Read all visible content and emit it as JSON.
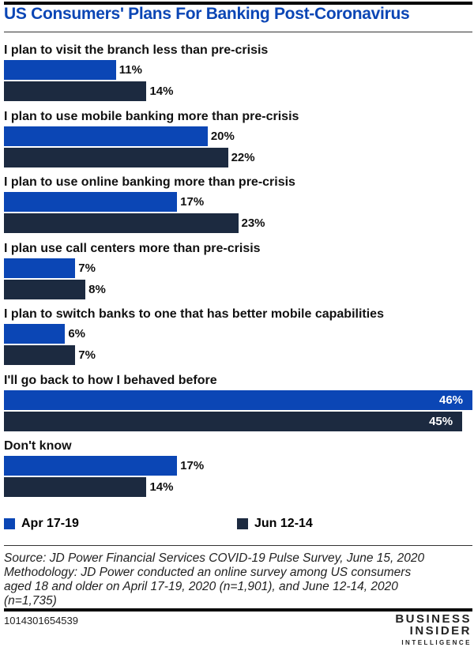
{
  "chart_data": {
    "type": "bar",
    "orientation": "horizontal",
    "title": "US Consumers' Plans For Banking Post-Coronavirus",
    "categories": [
      "I plan to visit the branch less than pre-crisis",
      "I plan to use mobile banking more than pre-crisis",
      "I plan to use online banking more than pre-crisis",
      "I plan use call centers more than pre-crisis",
      "I plan to switch banks to one that has better mobile capabilities",
      "I'll go back to how I behaved before",
      "Don't know"
    ],
    "series": [
      {
        "name": "Apr 17-19",
        "color": "#0b46b5",
        "values": [
          11,
          20,
          17,
          7,
          6,
          46,
          17
        ]
      },
      {
        "name": "Jun 12-14",
        "color": "#1c2a40",
        "values": [
          14,
          22,
          23,
          8,
          7,
          45,
          14
        ]
      }
    ],
    "value_suffix": "%",
    "xlim": [
      0,
      46
    ],
    "legend": "bottom",
    "grid": false
  },
  "source": [
    "Source: JD Power Financial Services COVID-19 Pulse Survey, June 15, 2020",
    "Methodology: JD Power conducted an online survey among US consumers",
    "aged 18 and older on April 17-19, 2020 (n=1,901), and June 12-14, 2020",
    "(n=1,735)"
  ],
  "chart_id": "1014301654539",
  "logo": [
    "BUSINESS",
    "INSIDER",
    "INTELLIGENCE"
  ]
}
